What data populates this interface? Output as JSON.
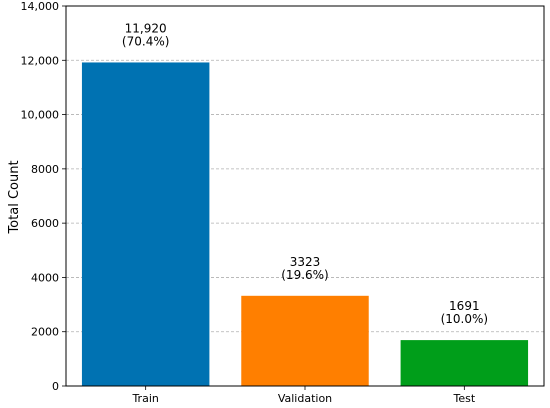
{
  "chart_data": {
    "type": "bar",
    "title": "",
    "xlabel": "",
    "ylabel": "Total Count",
    "ylim": [
      0,
      14000
    ],
    "yticks": [
      0,
      2000,
      4000,
      6000,
      8000,
      10000,
      12000,
      14000
    ],
    "ytick_labels": [
      "0",
      "2000",
      "4000",
      "6000",
      "8000",
      "10,000",
      "12,000",
      "14,000"
    ],
    "categories": [
      "Train",
      "Validation",
      "Test"
    ],
    "values": [
      11920,
      3323,
      1691
    ],
    "value_labels": [
      "11,920",
      "3323",
      "1691"
    ],
    "percent_labels": [
      "(70.4%)",
      "(19.6%)",
      "(10.0%)"
    ],
    "colors": [
      "#0072b2",
      "#ff7f00",
      "#009e1a"
    ],
    "grid": "horizontal-dashed",
    "legend": "none"
  }
}
